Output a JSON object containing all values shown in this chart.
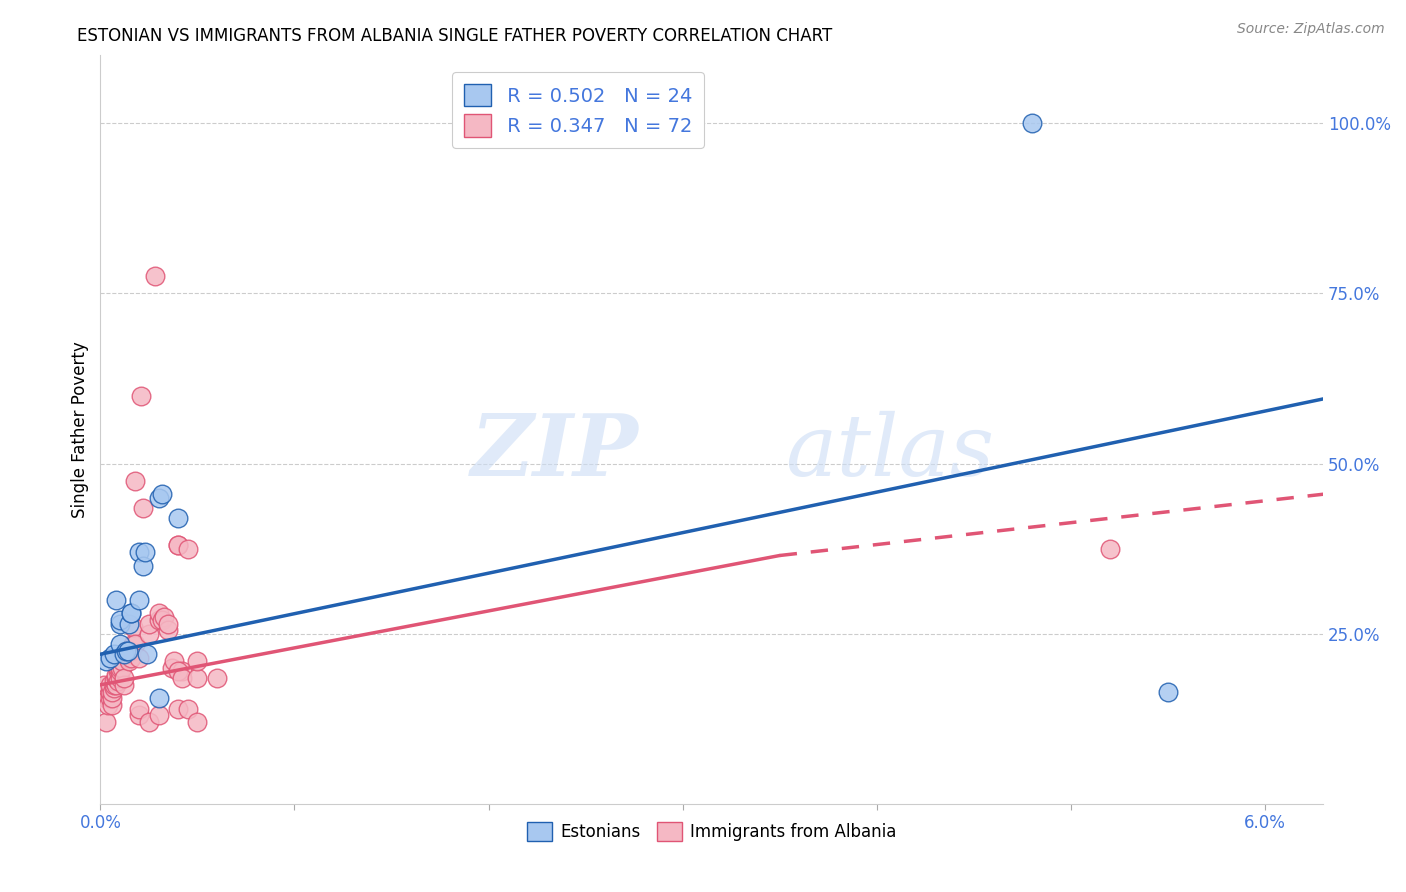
{
  "title": "ESTONIAN VS IMMIGRANTS FROM ALBANIA SINGLE FATHER POVERTY CORRELATION CHART",
  "source": "Source: ZipAtlas.com",
  "ylabel": "Single Father Poverty",
  "right_yticks": [
    "25.0%",
    "50.0%",
    "75.0%",
    "100.0%"
  ],
  "right_ytick_vals": [
    0.25,
    0.5,
    0.75,
    1.0
  ],
  "xlim": [
    0.0,
    0.063
  ],
  "ylim": [
    0.0,
    1.1
  ],
  "color_blue": "#a8c8f0",
  "color_pink": "#f5b8c4",
  "color_blue_line": "#2060b0",
  "color_pink_line": "#e05575",
  "color_text_blue": "#4477dd",
  "watermark_zip": "ZIP",
  "watermark_atlas": "atlas",
  "estonians": [
    [
      0.0003,
      0.21
    ],
    [
      0.0005,
      0.215
    ],
    [
      0.0007,
      0.22
    ],
    [
      0.0008,
      0.3
    ],
    [
      0.001,
      0.235
    ],
    [
      0.001,
      0.265
    ],
    [
      0.001,
      0.27
    ],
    [
      0.0012,
      0.22
    ],
    [
      0.0013,
      0.225
    ],
    [
      0.0014,
      0.225
    ],
    [
      0.0015,
      0.265
    ],
    [
      0.0016,
      0.28
    ],
    [
      0.0016,
      0.28
    ],
    [
      0.002,
      0.3
    ],
    [
      0.002,
      0.37
    ],
    [
      0.0022,
      0.35
    ],
    [
      0.0023,
      0.37
    ],
    [
      0.0024,
      0.22
    ],
    [
      0.003,
      0.155
    ],
    [
      0.003,
      0.45
    ],
    [
      0.0032,
      0.455
    ],
    [
      0.004,
      0.42
    ],
    [
      0.055,
      0.165
    ],
    [
      0.048,
      1.0
    ]
  ],
  "albanians": [
    [
      0.0002,
      0.175
    ],
    [
      0.0002,
      0.165
    ],
    [
      0.0003,
      0.12
    ],
    [
      0.0003,
      0.155
    ],
    [
      0.0004,
      0.155
    ],
    [
      0.0004,
      0.145
    ],
    [
      0.0005,
      0.155
    ],
    [
      0.0005,
      0.165
    ],
    [
      0.0005,
      0.175
    ],
    [
      0.0006,
      0.145
    ],
    [
      0.0006,
      0.155
    ],
    [
      0.0006,
      0.165
    ],
    [
      0.0007,
      0.17
    ],
    [
      0.0007,
      0.175
    ],
    [
      0.0007,
      0.18
    ],
    [
      0.0008,
      0.175
    ],
    [
      0.0008,
      0.185
    ],
    [
      0.0008,
      0.19
    ],
    [
      0.0009,
      0.18
    ],
    [
      0.0009,
      0.195
    ],
    [
      0.0009,
      0.2
    ],
    [
      0.001,
      0.185
    ],
    [
      0.001,
      0.195
    ],
    [
      0.001,
      0.2
    ],
    [
      0.0011,
      0.2
    ],
    [
      0.0011,
      0.21
    ],
    [
      0.0012,
      0.175
    ],
    [
      0.0012,
      0.185
    ],
    [
      0.0013,
      0.22
    ],
    [
      0.0013,
      0.225
    ],
    [
      0.0014,
      0.215
    ],
    [
      0.0014,
      0.22
    ],
    [
      0.0015,
      0.21
    ],
    [
      0.0015,
      0.22
    ],
    [
      0.0016,
      0.215
    ],
    [
      0.0016,
      0.225
    ],
    [
      0.0017,
      0.235
    ],
    [
      0.0017,
      0.26
    ],
    [
      0.0018,
      0.235
    ],
    [
      0.0018,
      0.475
    ],
    [
      0.002,
      0.215
    ],
    [
      0.0021,
      0.6
    ],
    [
      0.0022,
      0.435
    ],
    [
      0.0025,
      0.25
    ],
    [
      0.0025,
      0.265
    ],
    [
      0.003,
      0.27
    ],
    [
      0.003,
      0.28
    ],
    [
      0.0032,
      0.27
    ],
    [
      0.0033,
      0.275
    ],
    [
      0.0035,
      0.255
    ],
    [
      0.0035,
      0.265
    ],
    [
      0.0037,
      0.2
    ],
    [
      0.0038,
      0.21
    ],
    [
      0.004,
      0.38
    ],
    [
      0.004,
      0.38
    ],
    [
      0.0042,
      0.195
    ],
    [
      0.0045,
      0.375
    ],
    [
      0.004,
      0.195
    ],
    [
      0.0042,
      0.185
    ],
    [
      0.005,
      0.185
    ],
    [
      0.005,
      0.21
    ],
    [
      0.052,
      0.375
    ],
    [
      0.006,
      0.185
    ],
    [
      0.002,
      0.13
    ],
    [
      0.002,
      0.14
    ],
    [
      0.0025,
      0.12
    ],
    [
      0.003,
      0.13
    ],
    [
      0.0028,
      0.775
    ],
    [
      0.004,
      0.14
    ],
    [
      0.0045,
      0.14
    ],
    [
      0.005,
      0.12
    ]
  ],
  "blue_line": {
    "x0": 0.0,
    "x1": 0.063,
    "y0": 0.22,
    "y1": 0.595
  },
  "pink_line_solid": {
    "x0": 0.0,
    "x1": 0.035,
    "y0": 0.175,
    "y1": 0.365
  },
  "pink_line_dashed": {
    "x0": 0.035,
    "x1": 0.063,
    "y0": 0.365,
    "y1": 0.455
  }
}
